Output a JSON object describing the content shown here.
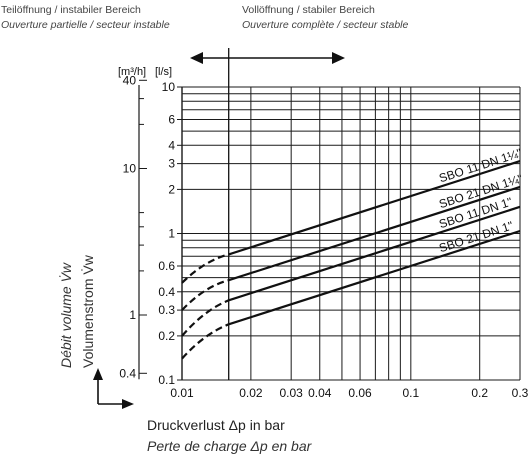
{
  "header": {
    "left_de": "Teilöffnung / instabiler Bereich",
    "left_fr": "Ouverture partielle / secteur instable",
    "right_de": "Vollöffnung / stabiler Bereich",
    "right_fr": "Ouverture complète / secteur stable"
  },
  "axes": {
    "unit_m3h": "[m³/h]",
    "unit_ls": "[l/s]",
    "y_label_fr": "Débit volume V̇w",
    "y_label_de": "Volumenstrom V̇w",
    "x_label_de": "Druckverlust Δp in bar",
    "x_label_fr": "Perte de charge Δp en bar"
  },
  "chart_data": {
    "type": "line",
    "x_scale": "log",
    "y_scale": "log",
    "xlim": [
      0.01,
      0.3
    ],
    "ylim_ls": [
      0.1,
      10
    ],
    "x_ticks": [
      {
        "v": 0.01,
        "label": "0.01"
      },
      {
        "v": 0.02,
        "label": "0.02"
      },
      {
        "v": 0.03,
        "label": "0.03"
      },
      {
        "v": 0.04,
        "label": "0.04"
      },
      {
        "v": 0.06,
        "label": "0.06"
      },
      {
        "v": 0.1,
        "label": "0.1"
      },
      {
        "v": 0.2,
        "label": "0.2"
      },
      {
        "v": 0.3,
        "label": "0.3"
      }
    ],
    "x_gridlines": [
      0.01,
      0.02,
      0.03,
      0.04,
      0.05,
      0.06,
      0.07,
      0.08,
      0.09,
      0.1,
      0.2,
      0.3
    ],
    "y_ticks_ls": [
      {
        "v": 0.1,
        "label": "0.1"
      },
      {
        "v": 0.2,
        "label": "0.2"
      },
      {
        "v": 0.3,
        "label": "0.3"
      },
      {
        "v": 0.4,
        "label": "0.4"
      },
      {
        "v": 0.6,
        "label": "0.6"
      },
      {
        "v": 1,
        "label": "1"
      },
      {
        "v": 2,
        "label": "2"
      },
      {
        "v": 3,
        "label": "3"
      },
      {
        "v": 4,
        "label": "4"
      },
      {
        "v": 6,
        "label": "6"
      },
      {
        "v": 10,
        "label": "10"
      }
    ],
    "y_gridlines_ls": [
      0.1,
      0.2,
      0.3,
      0.4,
      0.5,
      0.6,
      0.7,
      0.8,
      0.9,
      1,
      2,
      3,
      4,
      5,
      6,
      7,
      8,
      9,
      10
    ],
    "y_ticks_m3h": [
      {
        "v": 0.4,
        "label": "0.4"
      },
      {
        "v": 1,
        "label": "1"
      },
      {
        "v": 10,
        "label": "10"
      },
      {
        "v": 40,
        "label": "40"
      }
    ],
    "y_minor_m3h": [
      2,
      3,
      4,
      5,
      20,
      30
    ],
    "regime_boundary_dp": 0.016,
    "series": [
      {
        "name": "SBO 11 DN 1¼\"",
        "x": [
          0.01,
          0.0125,
          0.016,
          0.3
        ],
        "y": [
          0.46,
          0.63,
          0.72,
          3.12
        ]
      },
      {
        "name": "SBO 21 DN 1¼\"",
        "x": [
          0.01,
          0.0125,
          0.016,
          0.3
        ],
        "y": [
          0.3,
          0.42,
          0.48,
          2.08
        ]
      },
      {
        "name": "SBO 11 DN 1\"",
        "x": [
          0.01,
          0.0125,
          0.016,
          0.3
        ],
        "y": [
          0.2,
          0.29,
          0.35,
          1.52
        ]
      },
      {
        "name": "SBO 21 DN 1\"",
        "x": [
          0.01,
          0.0125,
          0.016,
          0.3
        ],
        "y": [
          0.14,
          0.2,
          0.24,
          1.04
        ]
      }
    ]
  }
}
